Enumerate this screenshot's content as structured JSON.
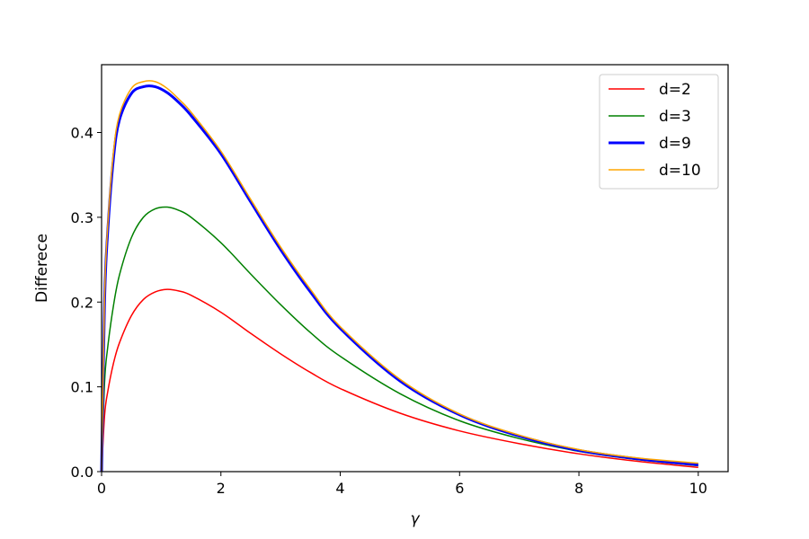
{
  "chart_data": {
    "type": "line",
    "xlabel": "γ",
    "ylabel": "Differece",
    "xlim": [
      0,
      10.5
    ],
    "ylim": [
      0,
      0.48
    ],
    "xticks": [
      0,
      2,
      4,
      6,
      8,
      10
    ],
    "xtick_labels": [
      "0",
      "2",
      "4",
      "6",
      "8",
      "10"
    ],
    "yticks": [
      0.0,
      0.1,
      0.2,
      0.3,
      0.4
    ],
    "ytick_labels": [
      "0.0",
      "0.1",
      "0.2",
      "0.3",
      "0.4"
    ],
    "grid": false,
    "legend_position": "top-right",
    "x": [
      0,
      0.05,
      0.1,
      0.2,
      0.3,
      0.5,
      0.7,
      0.9,
      1.1,
      1.3,
      1.5,
      2,
      2.5,
      3,
      3.5,
      4,
      5,
      6,
      7,
      8,
      9,
      10
    ],
    "series": [
      {
        "name": "d=2",
        "color": "#ff0000",
        "width": "thin",
        "values": [
          0,
          0.066,
          0.093,
          0.128,
          0.152,
          0.184,
          0.203,
          0.212,
          0.215,
          0.213,
          0.208,
          0.188,
          0.163,
          0.139,
          0.117,
          0.098,
          0.069,
          0.048,
          0.033,
          0.021,
          0.012,
          0.005
        ]
      },
      {
        "name": "d=3",
        "color": "#008000",
        "width": "thin",
        "values": [
          0,
          0.105,
          0.145,
          0.196,
          0.232,
          0.276,
          0.3,
          0.31,
          0.312,
          0.308,
          0.3,
          0.27,
          0.233,
          0.197,
          0.164,
          0.136,
          0.092,
          0.06,
          0.039,
          0.024,
          0.014,
          0.007
        ]
      },
      {
        "name": "d=9",
        "color": "#0000ff",
        "width": "thick",
        "values": [
          0,
          0.2,
          0.28,
          0.37,
          0.415,
          0.446,
          0.454,
          0.454,
          0.447,
          0.435,
          0.42,
          0.375,
          0.318,
          0.262,
          0.212,
          0.169,
          0.107,
          0.067,
          0.042,
          0.025,
          0.015,
          0.008
        ]
      },
      {
        "name": "d=10",
        "color": "#ffa500",
        "width": "thin",
        "values": [
          0,
          0.205,
          0.286,
          0.377,
          0.421,
          0.452,
          0.46,
          0.46,
          0.452,
          0.439,
          0.424,
          0.378,
          0.321,
          0.265,
          0.215,
          0.171,
          0.109,
          0.068,
          0.043,
          0.026,
          0.016,
          0.01
        ]
      }
    ]
  }
}
